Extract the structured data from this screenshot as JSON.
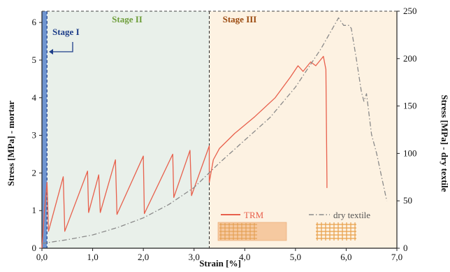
{
  "chart_data": {
    "type": "line",
    "xlabel": "Strain [%]",
    "ylabel_left": "Stress [MPa] - mortar",
    "ylabel_right": "Stress [MPa] - dry textile",
    "xlim": [
      0,
      7
    ],
    "ylim_left": [
      0,
      6.3
    ],
    "ylim_right": [
      0,
      250
    ],
    "x_ticks": [
      "0,0",
      "1,0",
      "2,0",
      "3,0",
      "4,0",
      "5,0",
      "6,0",
      "7,0"
    ],
    "x_tick_values": [
      0,
      1,
      2,
      3,
      4,
      5,
      6,
      7
    ],
    "y_left_ticks": [
      "0",
      "1",
      "2",
      "3",
      "4",
      "5",
      "6"
    ],
    "y_left_tick_values": [
      0,
      1,
      2,
      3,
      4,
      5,
      6
    ],
    "y_right_ticks": [
      "0",
      "50",
      "100",
      "150",
      "200",
      "250"
    ],
    "y_right_tick_values": [
      0,
      50,
      100,
      150,
      200,
      250
    ],
    "stages": [
      {
        "label": "Stage I",
        "x_start": 0.0,
        "x_end": 0.1,
        "color": "#6f95d0",
        "label_color": "#1f3f8a"
      },
      {
        "label": "Stage II",
        "x_start": 0.1,
        "x_end": 3.3,
        "color": "#e9f0ea",
        "label_color": "#6e9e3a"
      },
      {
        "label": "Stage III",
        "x_start": 3.3,
        "x_end": 7.0,
        "color": "#fdf2e2",
        "label_color": "#9b4a0f"
      }
    ],
    "series": [
      {
        "name": "TRM",
        "axis": "left",
        "color": "#e8604c",
        "style": "solid",
        "points": [
          [
            0.0,
            0.0
          ],
          [
            0.05,
            1.0
          ],
          [
            0.1,
            1.75
          ],
          [
            0.13,
            0.45
          ],
          [
            0.42,
            1.9
          ],
          [
            0.45,
            0.45
          ],
          [
            0.9,
            2.05
          ],
          [
            0.92,
            0.95
          ],
          [
            1.12,
            1.95
          ],
          [
            1.15,
            0.95
          ],
          [
            1.45,
            2.35
          ],
          [
            1.48,
            0.9
          ],
          [
            2.0,
            2.45
          ],
          [
            2.02,
            0.92
          ],
          [
            2.58,
            2.5
          ],
          [
            2.6,
            1.35
          ],
          [
            2.92,
            2.6
          ],
          [
            2.95,
            1.4
          ],
          [
            3.3,
            2.72
          ],
          [
            3.3,
            1.75
          ],
          [
            3.38,
            2.35
          ],
          [
            3.5,
            2.65
          ],
          [
            3.8,
            3.05
          ],
          [
            4.2,
            3.5
          ],
          [
            4.6,
            4.0
          ],
          [
            4.9,
            4.55
          ],
          [
            5.05,
            4.85
          ],
          [
            5.15,
            4.7
          ],
          [
            5.3,
            4.95
          ],
          [
            5.4,
            4.85
          ],
          [
            5.55,
            5.1
          ],
          [
            5.6,
            4.75
          ],
          [
            5.62,
            1.8
          ],
          [
            5.62,
            1.6
          ]
        ]
      },
      {
        "name": "dry textile",
        "axis": "right",
        "color": "#8a8a8a",
        "style": "dashdot",
        "points": [
          [
            0.0,
            5
          ],
          [
            0.5,
            9
          ],
          [
            1.0,
            14
          ],
          [
            1.5,
            22
          ],
          [
            2.0,
            32
          ],
          [
            2.5,
            46
          ],
          [
            3.0,
            64
          ],
          [
            3.5,
            90
          ],
          [
            4.0,
            114
          ],
          [
            4.5,
            138
          ],
          [
            5.0,
            170
          ],
          [
            5.5,
            210
          ],
          [
            5.85,
            243
          ],
          [
            5.95,
            235
          ],
          [
            6.05,
            235
          ],
          [
            6.1,
            232
          ],
          [
            6.2,
            200
          ],
          [
            6.3,
            165
          ],
          [
            6.35,
            155
          ],
          [
            6.4,
            163
          ],
          [
            6.5,
            120
          ],
          [
            6.6,
            100
          ],
          [
            6.7,
            75
          ],
          [
            6.8,
            50
          ]
        ]
      }
    ]
  }
}
